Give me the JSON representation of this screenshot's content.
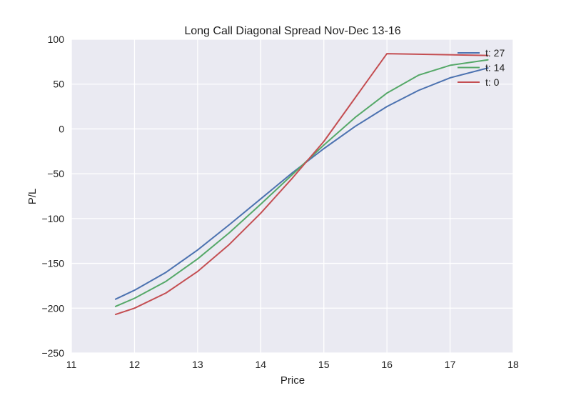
{
  "chart_data": {
    "type": "line",
    "title": "Long Call Diagonal Spread Nov-Dec 13-16",
    "xlabel": "Price",
    "ylabel": "P/L",
    "xlim": [
      11,
      18
    ],
    "ylim": [
      -250,
      100
    ],
    "xticks": [
      11,
      12,
      13,
      14,
      15,
      16,
      17,
      18
    ],
    "yticks": [
      100,
      50,
      0,
      -50,
      -100,
      -150,
      -200,
      -250
    ],
    "xtick_labels": [
      "11",
      "12",
      "13",
      "14",
      "15",
      "16",
      "17",
      "18"
    ],
    "ytick_labels": [
      "100",
      "50",
      "0",
      "−50",
      "−100",
      "−150",
      "−200",
      "−250"
    ],
    "grid": true,
    "legend_position": "top-right",
    "background": "#EAEAF2",
    "series": [
      {
        "name": "t: 27",
        "color": "#4C72B0",
        "x": [
          11.7,
          12.0,
          12.5,
          13.0,
          13.5,
          14.0,
          14.5,
          15.0,
          15.5,
          16.0,
          16.5,
          17.0,
          17.6
        ],
        "y": [
          -190,
          -180,
          -160,
          -135,
          -107,
          -78,
          -49,
          -22,
          3,
          25,
          43,
          57,
          68
        ]
      },
      {
        "name": "t: 14",
        "color": "#55A868",
        "x": [
          11.7,
          12.0,
          12.5,
          13.0,
          13.5,
          14.0,
          14.5,
          15.0,
          15.5,
          16.0,
          16.5,
          17.0,
          17.6
        ],
        "y": [
          -198,
          -189,
          -170,
          -145,
          -116,
          -84,
          -51,
          -18,
          13,
          40,
          60,
          71,
          77
        ]
      },
      {
        "name": "t: 0",
        "color": "#C44E52",
        "x": [
          11.7,
          12.0,
          12.5,
          13.0,
          13.5,
          14.0,
          14.5,
          15.0,
          15.5,
          16.0,
          17.6
        ],
        "y": [
          -207,
          -200,
          -183,
          -159,
          -129,
          -94,
          -55,
          -14,
          35,
          84,
          82
        ]
      }
    ]
  }
}
